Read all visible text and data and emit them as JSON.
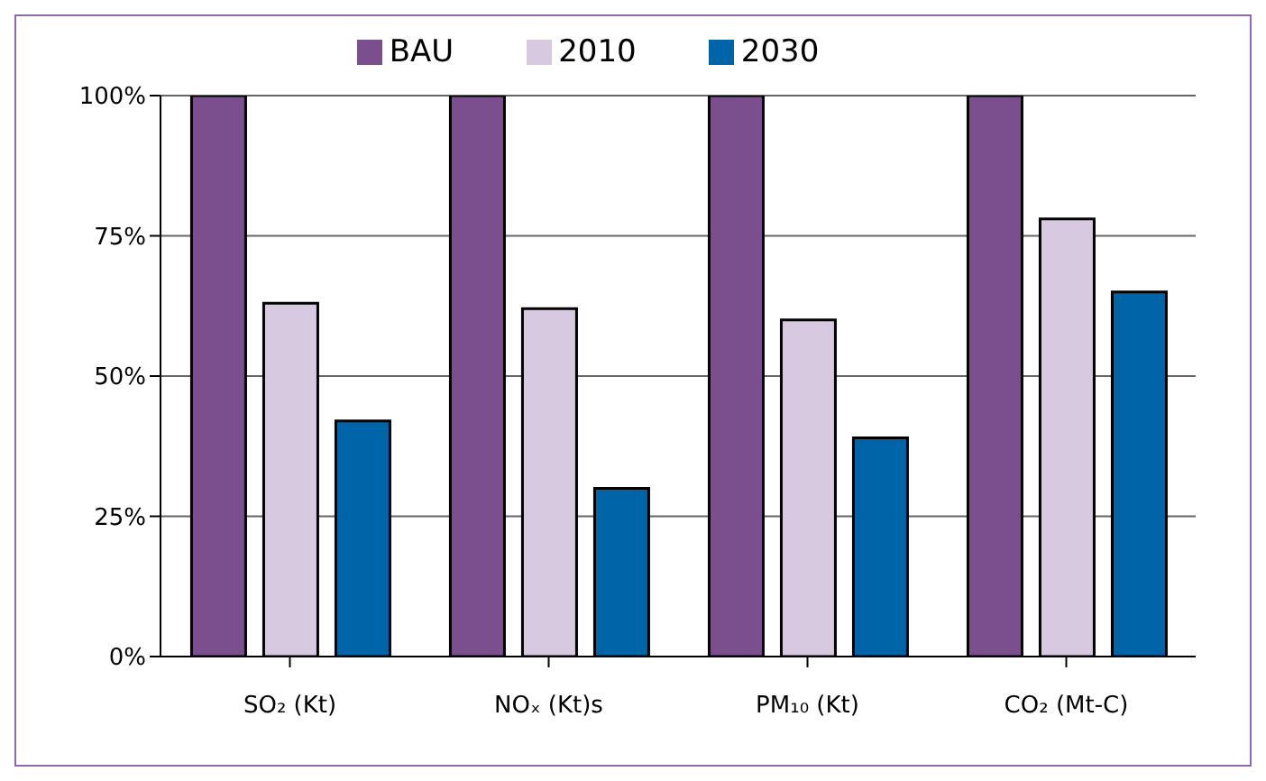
{
  "chart_data": {
    "type": "bar",
    "categories": [
      "SO₂ (Kt)",
      "NOₓ (Kt)s",
      "PM₁₀ (Kt)",
      "CO₂ (Mt-C)"
    ],
    "series": [
      {
        "name": "BAU",
        "color": "#7b4f8e",
        "values": [
          100,
          100,
          100,
          100
        ]
      },
      {
        "name": "2010",
        "color": "#d6c9e0",
        "values": [
          63,
          62,
          60,
          78
        ]
      },
      {
        "name": "2030",
        "color": "#0064a8",
        "values": [
          42,
          30,
          39,
          65
        ]
      }
    ],
    "ylim": [
      0,
      100
    ],
    "yticks": [
      {
        "value": 0,
        "label": "0%"
      },
      {
        "value": 25,
        "label": "25%"
      },
      {
        "value": 50,
        "label": "50%"
      },
      {
        "value": 75,
        "label": "75%"
      },
      {
        "value": 100,
        "label": "100%"
      }
    ],
    "grid": "y",
    "legend": "top"
  }
}
